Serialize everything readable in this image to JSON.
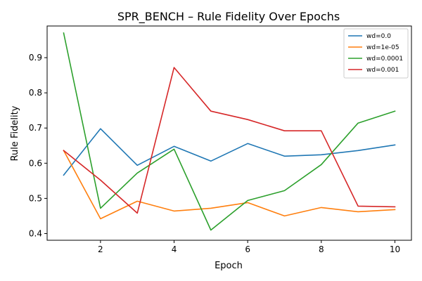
{
  "chart_data": {
    "type": "line",
    "title": "SPR_BENCH – Rule Fidelity Over Epochs",
    "xlabel": "Epoch",
    "ylabel": "Rule Fidelity",
    "x": [
      1,
      2,
      3,
      4,
      5,
      6,
      7,
      8,
      9,
      10
    ],
    "xlim": [
      0.55,
      10.45
    ],
    "ylim": [
      0.381,
      0.99
    ],
    "xticks": [
      2,
      4,
      6,
      8,
      10
    ],
    "yticks": [
      0.4,
      0.5,
      0.6,
      0.7,
      0.8,
      0.9
    ],
    "ytick_labels": [
      "0.4",
      "0.5",
      "0.6",
      "0.7",
      "0.8",
      "0.9"
    ],
    "grid": false,
    "legend_position": "top-right",
    "series": [
      {
        "name": "wd=0.0",
        "color": "#1f77b4",
        "values": [
          0.566,
          0.698,
          0.594,
          0.648,
          0.606,
          0.656,
          0.62,
          0.624,
          0.636,
          0.652
        ]
      },
      {
        "name": "wd=1e-05",
        "color": "#ff7f0e",
        "values": [
          0.636,
          0.442,
          0.492,
          0.464,
          0.472,
          0.488,
          0.45,
          0.474,
          0.462,
          0.468
        ]
      },
      {
        "name": "wd=0.0001",
        "color": "#2ca02c",
        "values": [
          0.97,
          0.472,
          0.572,
          0.64,
          0.41,
          0.494,
          0.522,
          0.596,
          0.714,
          0.748
        ]
      },
      {
        "name": "wd=0.001",
        "color": "#d62728",
        "values": [
          0.636,
          0.552,
          0.458,
          0.872,
          0.748,
          0.724,
          0.692,
          0.692,
          0.478,
          0.476
        ]
      }
    ]
  }
}
